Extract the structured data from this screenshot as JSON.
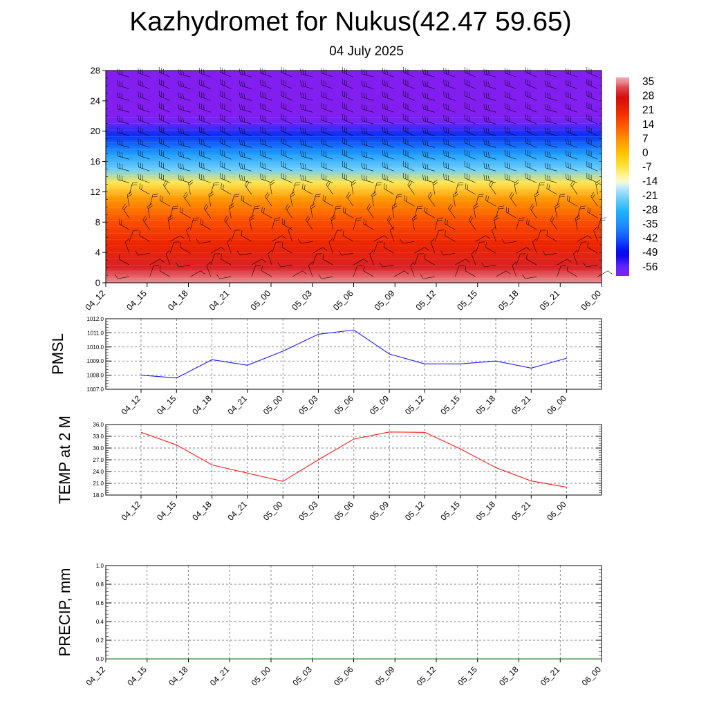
{
  "header": {
    "title": "Kazhydromet for Nukus(42.47 59.65)",
    "date": "04 July 2025"
  },
  "colors": {
    "pmsl_line": "#1a1aff",
    "temp_line": "#ff1a1a",
    "precip_line": "#006400"
  },
  "chart_data": [
    {
      "type": "heatmap",
      "categories": [
        "04_12",
        "04_15",
        "04_18",
        "04_21",
        "05_00",
        "05_03",
        "05_06",
        "05_09",
        "05_12",
        "05_15",
        "05_18",
        "05_21",
        "06_00"
      ],
      "y_ticks": [
        0,
        4,
        8,
        12,
        16,
        20,
        24,
        28
      ],
      "ylim": [
        0,
        28
      ],
      "colorbar_labels": [
        35,
        28,
        21,
        14,
        7,
        0,
        -7,
        -14,
        -21,
        -28,
        -35,
        -42,
        -49,
        -56
      ],
      "overlay": "wind barbs",
      "levels": [
        {
          "y": 0,
          "value": 36
        },
        {
          "y": 2,
          "value": 30
        },
        {
          "y": 5,
          "value": 22
        },
        {
          "y": 8,
          "value": 16
        },
        {
          "y": 11,
          "value": 7
        },
        {
          "y": 13.2,
          "value": -7
        },
        {
          "y": 15,
          "value": -22
        },
        {
          "y": 17,
          "value": -32
        },
        {
          "y": 19.5,
          "value": -45
        },
        {
          "y": 21.2,
          "value": -58
        },
        {
          "y": 22.2,
          "value": -60
        },
        {
          "y": 28,
          "value": -60
        }
      ]
    },
    {
      "type": "line",
      "ylabel": "PMSL",
      "categories": [
        "04_12",
        "04_15",
        "04_18",
        "04_21",
        "05_00",
        "05_03",
        "05_06",
        "05_09",
        "05_12",
        "05_15",
        "05_18",
        "05_21",
        "06_00"
      ],
      "series": [
        {
          "values": [
            1008.0,
            1007.8,
            1009.1,
            1008.7,
            1009.7,
            1010.9,
            1011.2,
            1009.5,
            1008.8,
            1008.8,
            1009.0,
            1008.5,
            1009.2
          ]
        }
      ],
      "ylim": [
        1007.0,
        1012.0
      ],
      "y_ticks": [
        "1007.0",
        "1008.0",
        "1009.0",
        "1010.0",
        "1011.0",
        "1012.0"
      ],
      "grid": true
    },
    {
      "type": "line",
      "ylabel": "TEMP at 2 M",
      "categories": [
        "04_12",
        "04_15",
        "04_18",
        "04_21",
        "05_00",
        "05_03",
        "05_06",
        "05_09",
        "05_12",
        "05_15",
        "05_18",
        "05_21",
        "06_00"
      ],
      "series": [
        {
          "values": [
            34.0,
            30.8,
            25.7,
            23.6,
            21.5,
            27.0,
            32.3,
            34.1,
            34.0,
            29.8,
            25.0,
            21.6,
            20.0
          ]
        }
      ],
      "ylim": [
        18.0,
        36.0
      ],
      "y_ticks": [
        "18.0",
        "21.0",
        "24.0",
        "27.0",
        "30.0",
        "33.0",
        "36.0"
      ],
      "grid": true
    },
    {
      "type": "line",
      "ylabel": "PRECIP, mm",
      "categories": [
        "04_12",
        "04_15",
        "04_18",
        "04_21",
        "05_00",
        "05_03",
        "05_06",
        "05_09",
        "05_12",
        "05_15",
        "05_18",
        "05_21",
        "06_00"
      ],
      "series": [
        {
          "values": [
            0,
            0,
            0,
            0,
            0,
            0,
            0,
            0,
            0,
            0,
            0,
            0,
            0
          ]
        }
      ],
      "ylim": [
        0.0,
        1.0
      ],
      "y_ticks": [
        "0.0",
        "0.2",
        "0.4",
        "0.6",
        "0.8",
        "1.0"
      ],
      "grid": true
    }
  ]
}
